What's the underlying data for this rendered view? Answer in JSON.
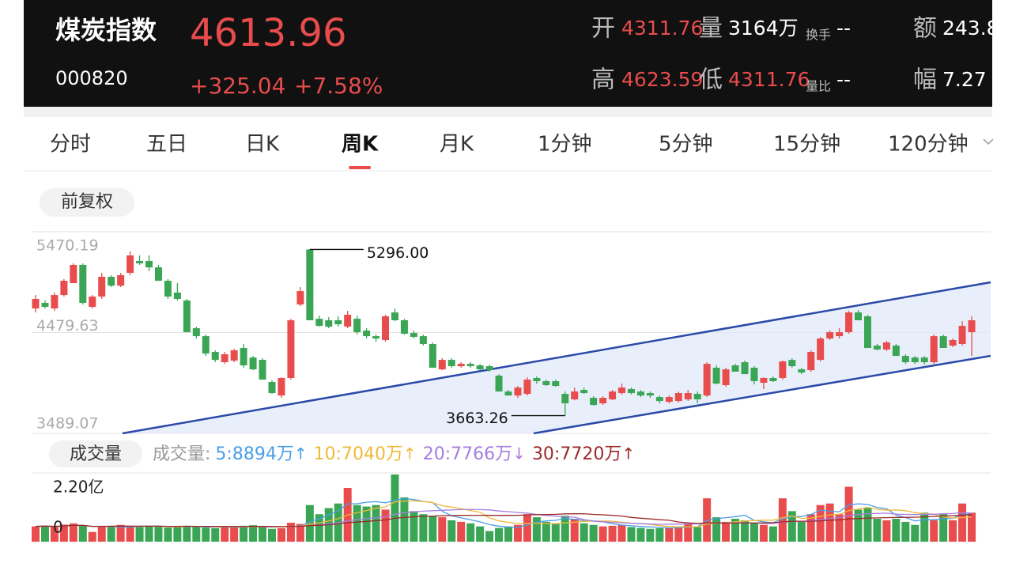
{
  "header": {
    "name": "煤炭指数",
    "price": "4613.96",
    "code": "000820",
    "change": "+325.04",
    "change_pct": "+7.58%",
    "stats": [
      [
        {
          "label": "开",
          "value": "4311.76",
          "tone": "red"
        },
        {
          "label": "量",
          "value": "3164万",
          "tone": "white"
        },
        {
          "label": "换手",
          "value": "--",
          "tone": "white"
        },
        {
          "label": "额",
          "value": "243.8",
          "tone": "white"
        }
      ],
      [
        {
          "label": "高",
          "value": "4623.59",
          "tone": "red"
        },
        {
          "label": "低",
          "value": "4311.76",
          "tone": "red"
        },
        {
          "label": "量比",
          "value": "--",
          "tone": "white"
        },
        {
          "label": "幅",
          "value": "7.27",
          "tone": "white"
        }
      ]
    ]
  },
  "tabs": [
    "分时",
    "五日",
    "日K",
    "周K",
    "月K",
    "1分钟",
    "5分钟",
    "15分钟",
    "120分钟"
  ],
  "active_tab": 3,
  "adjust_button": "前复权",
  "volume_button": "成交量",
  "volume_legend": {
    "title": "成交量:",
    "items": [
      {
        "text": "5:8894万",
        "arrow": "↑",
        "color": "#4a9ee8"
      },
      {
        "text": "10:7040万",
        "arrow": "↑",
        "color": "#f0b93a"
      },
      {
        "text": "20:7766万",
        "arrow": "↓",
        "color": "#a77de0"
      },
      {
        "text": "30:7720万",
        "arrow": "↑",
        "color": "#9b2a2a"
      }
    ]
  },
  "chart_data": [
    {
      "type": "candlestick",
      "up_color": "#e84c4c",
      "down_color": "#3aa655",
      "ylim": [
        3489.07,
        5470.19
      ],
      "yticks": [
        3489.07,
        4479.63,
        5470.19
      ],
      "grid": true,
      "annotations": [
        {
          "value": 5296,
          "label": "5296.00"
        },
        {
          "value": 3663.26,
          "label": "3663.26"
        }
      ],
      "candles": [
        [
          4716,
          4848,
          4677,
          4810
        ],
        [
          4771,
          4794,
          4716,
          4732
        ],
        [
          4716,
          4872,
          4693,
          4848
        ],
        [
          4848,
          5004,
          4833,
          4988
        ],
        [
          4965,
          5159,
          4965,
          5144
        ],
        [
          5144,
          5159,
          4755,
          4771
        ],
        [
          4732,
          4848,
          4716,
          4833
        ],
        [
          4833,
          5066,
          4810,
          5027
        ],
        [
          5027,
          5043,
          4926,
          4940
        ],
        [
          4940,
          5066,
          4926,
          5043
        ],
        [
          5066,
          5276,
          5043,
          5237
        ],
        [
          5183,
          5237,
          5144,
          5159
        ],
        [
          5183,
          5237,
          5082,
          5120
        ],
        [
          5120,
          5144,
          4988,
          4988
        ],
        [
          4988,
          5004,
          4810,
          4833
        ],
        [
          4872,
          4965,
          4794,
          4810
        ],
        [
          4794,
          4810,
          4483,
          4483
        ],
        [
          4522,
          4538,
          4421,
          4444
        ],
        [
          4444,
          4460,
          4250,
          4273
        ],
        [
          4289,
          4305,
          4188,
          4211
        ],
        [
          4188,
          4289,
          4172,
          4266
        ],
        [
          4204,
          4320,
          4188,
          4305
        ],
        [
          4328,
          4367,
          4134,
          4157
        ],
        [
          4234,
          4250,
          4110,
          4118
        ],
        [
          4211,
          4227,
          4017,
          4017
        ],
        [
          3994,
          4010,
          3877,
          3885
        ],
        [
          3861,
          4040,
          3838,
          4033
        ],
        [
          4033,
          4615,
          4017,
          4600
        ],
        [
          4755,
          4926,
          4740,
          4887
        ],
        [
          5296,
          5296,
          4600,
          4600
        ],
        [
          4615,
          4646,
          4538,
          4545
        ],
        [
          4600,
          4630,
          4522,
          4538
        ],
        [
          4600,
          4638,
          4538,
          4561
        ],
        [
          4538,
          4693,
          4522,
          4654
        ],
        [
          4615,
          4646,
          4460,
          4483
        ],
        [
          4499,
          4522,
          4421,
          4444
        ],
        [
          4444,
          4460,
          4390,
          4421
        ],
        [
          4406,
          4654,
          4390,
          4639
        ],
        [
          4677,
          4716,
          4592,
          4600
        ],
        [
          4600,
          4615,
          4460,
          4468
        ],
        [
          4475,
          4499,
          4421,
          4437
        ],
        [
          4444,
          4460,
          4352,
          4367
        ],
        [
          4367,
          4382,
          4134,
          4134
        ],
        [
          4118,
          4227,
          4110,
          4211
        ],
        [
          4211,
          4227,
          4134,
          4149
        ],
        [
          4149,
          4188,
          4134,
          4172
        ],
        [
          4172,
          4188,
          4134,
          4149
        ],
        [
          4157,
          4172,
          4110,
          4118
        ],
        [
          4149,
          4165,
          4095,
          4110
        ],
        [
          4056,
          4071,
          3900,
          3900
        ],
        [
          3900,
          3916,
          3861,
          3861
        ],
        [
          3861,
          3955,
          3838,
          3939
        ],
        [
          3877,
          4040,
          3861,
          4017
        ],
        [
          4033,
          4048,
          3978,
          4002
        ],
        [
          4002,
          4017,
          3955,
          3963
        ],
        [
          4002,
          4017,
          3947,
          3955
        ],
        [
          3877,
          3900,
          3663.26,
          3784
        ],
        [
          3823,
          3939,
          3815,
          3900
        ],
        [
          3916,
          3939,
          3877,
          3885
        ],
        [
          3838,
          3854,
          3761,
          3768
        ],
        [
          3784,
          3854,
          3768,
          3838
        ],
        [
          3823,
          3916,
          3815,
          3900
        ],
        [
          3885,
          3978,
          3870,
          3939
        ],
        [
          3924,
          3939,
          3870,
          3885
        ],
        [
          3900,
          3916,
          3846,
          3861
        ],
        [
          3885,
          3900,
          3838,
          3861
        ],
        [
          3846,
          3861,
          3784,
          3807
        ],
        [
          3799,
          3861,
          3784,
          3846
        ],
        [
          3807,
          3900,
          3792,
          3885
        ],
        [
          3823,
          3916,
          3807,
          3885
        ],
        [
          3877,
          3900,
          3784,
          3823
        ],
        [
          3861,
          4188,
          3846,
          4172
        ],
        [
          4134,
          4157,
          3970,
          3978
        ],
        [
          3963,
          4134,
          3947,
          4118
        ],
        [
          4157,
          4172,
          4095,
          4095
        ],
        [
          4188,
          4204,
          4071,
          4071
        ],
        [
          4134,
          4149,
          3970,
          4002
        ],
        [
          3986,
          4040,
          3924,
          4033
        ],
        [
          4033,
          4048,
          3994,
          4002
        ],
        [
          4033,
          4204,
          4017,
          4196
        ],
        [
          4211,
          4227,
          4134,
          4149
        ],
        [
          4118,
          4134,
          4071,
          4087
        ],
        [
          4110,
          4305,
          4095,
          4289
        ],
        [
          4211,
          4437,
          4196,
          4421
        ],
        [
          4421,
          4499,
          4406,
          4483
        ],
        [
          4444,
          4522,
          4421,
          4483
        ],
        [
          4483,
          4693,
          4468,
          4677
        ],
        [
          4677,
          4701,
          4600,
          4600
        ],
        [
          4639,
          4654,
          4328,
          4328
        ],
        [
          4351,
          4367,
          4305,
          4313
        ],
        [
          4313,
          4398,
          4297,
          4382
        ],
        [
          4351,
          4367,
          4250,
          4250
        ],
        [
          4250,
          4266,
          4172,
          4188
        ],
        [
          4234,
          4250,
          4172,
          4188
        ],
        [
          4234,
          4250,
          4165,
          4188
        ],
        [
          4188,
          4460,
          4172,
          4444
        ],
        [
          4444,
          4460,
          4328,
          4328
        ],
        [
          4351,
          4421,
          4336,
          4406
        ],
        [
          4367,
          4592,
          4351,
          4545
        ],
        [
          4483,
          4639,
          4250,
          4600
        ]
      ]
    },
    {
      "type": "bar",
      "ylim": [
        0,
        22000
      ],
      "yticks": [
        0,
        {
          "value": 22000,
          "label": "2.20亿"
        }
      ],
      "values": [
        5000,
        5200,
        4800,
        5600,
        6000,
        5400,
        3200,
        5000,
        5200,
        5500,
        5000,
        4800,
        5200,
        5000,
        4600,
        5000,
        5200,
        4800,
        4600,
        4400,
        5000,
        4800,
        5200,
        5400,
        4800,
        4200,
        4400,
        6200,
        5800,
        12000,
        9000,
        11000,
        12500,
        17600,
        12000,
        11500,
        12000,
        10500,
        22000,
        14500,
        10000,
        9000,
        8500,
        8000,
        7000,
        6500,
        6000,
        5000,
        3500,
        4500,
        5000,
        5500,
        9000,
        8000,
        6500,
        6000,
        8500,
        7500,
        6000,
        5500,
        5000,
        5200,
        5500,
        4800,
        4500,
        4200,
        4400,
        4600,
        5000,
        5800,
        4800,
        14200,
        8000,
        6500,
        7500,
        7000,
        6000,
        5500,
        5000,
        14200,
        10000,
        6500,
        9000,
        12000,
        12500,
        9000,
        18000,
        10500,
        11000,
        7500,
        7000,
        7500,
        6500,
        5500,
        9500,
        7000,
        9000,
        7000,
        12500,
        9500
      ]
    }
  ]
}
